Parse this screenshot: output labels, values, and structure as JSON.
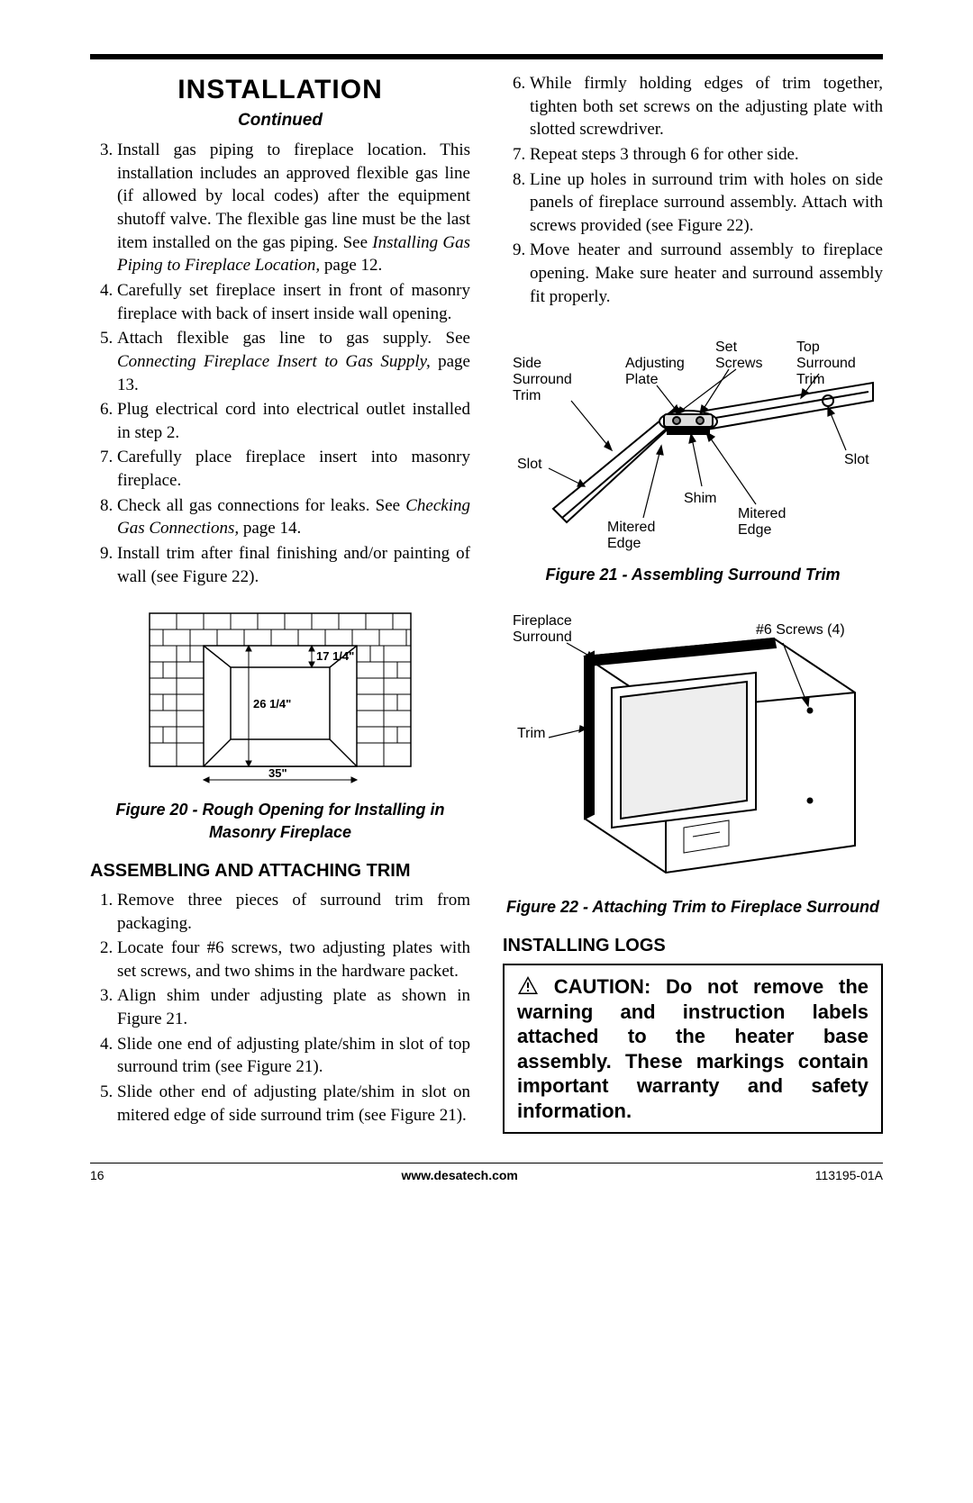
{
  "heading": "INSTALLATION",
  "continued": "Continued",
  "left_steps_start": 3,
  "left_steps": [
    {
      "pre": "Install gas piping to fireplace location. This installation includes an approved flexible gas line (if allowed by local codes) after the equipment shutoff valve. The flexible gas line must be the last item installed on the gas piping. See ",
      "ital": "Installing Gas Piping to Fireplace Location,",
      "post": " page 12."
    },
    {
      "pre": "Carefully set fireplace insert in front of masonry fireplace with back of insert inside wall opening.",
      "ital": "",
      "post": ""
    },
    {
      "pre": "Attach flexible gas line to gas supply. See ",
      "ital": "Connecting Fireplace Insert to Gas Supply,",
      "post": " page 13."
    },
    {
      "pre": "Plug electrical cord into electrical outlet installed in step 2.",
      "ital": "",
      "post": ""
    },
    {
      "pre": "Carefully place fireplace insert into masonry fireplace.",
      "ital": "",
      "post": ""
    },
    {
      "pre": "Check all gas connections for leaks. See ",
      "ital": "Checking Gas Connections,",
      "post": " page 14."
    },
    {
      "pre": "Install trim after final finishing and/or painting of wall (see Figure 22).",
      "ital": "",
      "post": ""
    }
  ],
  "fig20": {
    "caption": "Figure 20 - Rough Opening for Installing in Masonry Fireplace",
    "dim_h": "17 1/4\"",
    "dim_v": "26 1/4\"",
    "dim_w": "35\""
  },
  "subhead_assemble": "ASSEMBLING AND ATTACHING TRIM",
  "assemble_steps": [
    "Remove three pieces of surround trim from packaging.",
    "Locate four #6 screws, two adjusting plates with set screws, and two shims in the hardware packet.",
    "Align shim under adjusting plate as shown in Figure 21.",
    "Slide one end of adjusting plate/shim in slot of top surround trim (see Figure 21).",
    "Slide other end of adjusting plate/shim in slot on mitered edge of side surround trim (see Figure 21)."
  ],
  "right_steps_start": 6,
  "right_steps": [
    "While firmly holding edges of trim together, tighten both set screws on the adjusting plate with slotted screwdriver.",
    "Repeat steps 3 through 6 for other side.",
    "Line up holes in surround trim with holes on side panels of fireplace surround assembly. Attach with screws provided (see Figure 22).",
    "Move heater and surround assembly to fireplace opening. Make sure heater and surround assembly fit properly."
  ],
  "fig21": {
    "caption": "Figure 21 - Assembling Surround Trim",
    "labels": {
      "side_trim": "Side\nSurround\nTrim",
      "adj_plate": "Adjusting\nPlate",
      "set_screws": "Set\nScrews",
      "top_trim": "Top\nSurround\nTrim",
      "slot_l": "Slot",
      "slot_r": "Slot",
      "shim": "Shim",
      "mitered_l": "Mitered\nEdge",
      "mitered_r": "Mitered\nEdge"
    }
  },
  "fig22": {
    "caption": "Figure 22 - Attaching Trim to Fireplace Surround",
    "labels": {
      "fp_surround": "Fireplace\nSurround",
      "screws": "#6 Screws (4)",
      "trim": "Trim"
    }
  },
  "subhead_logs": "INSTALLING LOGS",
  "caution": " CAUTION: Do not remove the warning and instruction labels attached to the heater base assembly. These markings contain important warranty and safety information.",
  "footer": {
    "page": "16",
    "url": "www.desatech.com",
    "docnum": "113195-01A"
  },
  "colors": {
    "text": "#000000",
    "bg": "#ffffff",
    "rule": "#000000"
  }
}
